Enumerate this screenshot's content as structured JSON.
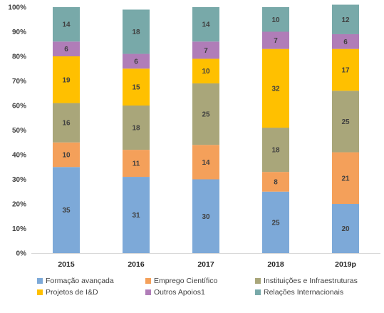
{
  "chart_data": {
    "type": "bar",
    "stacked": true,
    "percent": true,
    "categories": [
      "2015",
      "2016",
      "2017",
      "2018",
      "2019p"
    ],
    "ylim": [
      0,
      100
    ],
    "yticks": [
      "0%",
      "10%",
      "20%",
      "30%",
      "40%",
      "50%",
      "60%",
      "70%",
      "80%",
      "90%",
      "100%"
    ],
    "legend_position": "bottom",
    "series": [
      {
        "name": "Formação avançada",
        "color": "#7DA9D8",
        "values": [
          35,
          31,
          30,
          25,
          20
        ]
      },
      {
        "name": "Emprego Científico",
        "color": "#F4A05A",
        "values": [
          10,
          11,
          14,
          8,
          21
        ]
      },
      {
        "name": "Instituições e Infraestruturas",
        "color": "#A9A67A",
        "values": [
          16,
          18,
          25,
          18,
          25
        ]
      },
      {
        "name": "Projetos de I&D",
        "color": "#FFC000",
        "values": [
          19,
          15,
          10,
          32,
          17
        ]
      },
      {
        "name": "Outros Apoios1",
        "color": "#B07DB8",
        "values": [
          6,
          6,
          7,
          7,
          6
        ]
      },
      {
        "name": "Relações Internacionais",
        "color": "#78A9A9",
        "values": [
          14,
          18,
          14,
          10,
          12
        ]
      }
    ]
  }
}
